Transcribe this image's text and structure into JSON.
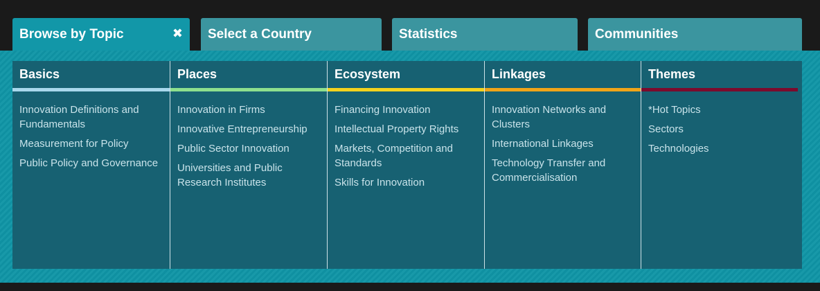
{
  "tabs": [
    {
      "label": "Browse by Topic",
      "active": true
    },
    {
      "label": "Select a Country",
      "active": false
    },
    {
      "label": "Statistics",
      "active": false
    },
    {
      "label": "Communities",
      "active": false
    }
  ],
  "close_icon": "close-icon",
  "columns": [
    {
      "title": "Basics",
      "color": "#a9d8ec",
      "items": [
        "Innovation Definitions and Fundamentals",
        "Measurement for Policy",
        "Public Policy and Governance"
      ]
    },
    {
      "title": "Places",
      "color": "#8ee08e",
      "items": [
        "Innovation in Firms",
        "Innovative Entrepreneurship",
        "Public Sector Innovation",
        "Universities and Public Research Institutes"
      ]
    },
    {
      "title": "Ecosystem",
      "color": "#f4d21e",
      "items": [
        "Financing Innovation",
        "Intellectual Property Rights",
        "Markets, Competition and Standards",
        "Skills for Innovation"
      ]
    },
    {
      "title": "Linkages",
      "color": "#f0a519",
      "items": [
        "Innovation Networks and Clusters",
        "International Linkages",
        "Technology Transfer and Commercialisation"
      ]
    },
    {
      "title": "Themes",
      "color": "#7c0a2c",
      "items": [
        "*Hot Topics",
        "Sectors",
        "Technologies"
      ]
    }
  ]
}
